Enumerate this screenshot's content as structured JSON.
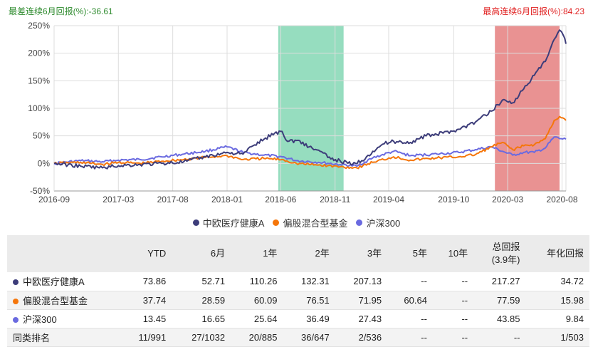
{
  "header": {
    "worst_label": "最差连续6月回报(%):-36.61",
    "best_label": "最高连续6月回报(%):84.23"
  },
  "chart_data": {
    "type": "line",
    "ylabel_ticks": [
      "-50%",
      "0%",
      "50%",
      "100%",
      "150%",
      "200%",
      "250%"
    ],
    "y_ticks": [
      -50,
      0,
      50,
      100,
      150,
      200,
      250
    ],
    "ylim": [
      -50,
      250
    ],
    "x_ticks": [
      "2016-09",
      "2017-03",
      "2017-08",
      "2018-01",
      "2018-06",
      "2018-11",
      "2019-04",
      "2019-10",
      "2020-03",
      "2020-08"
    ],
    "x_tick_dates": [
      "2016-09-01",
      "2017-03-01",
      "2017-08-01",
      "2018-01-01",
      "2018-06-01",
      "2018-11-01",
      "2019-04-01",
      "2019-10-01",
      "2020-03-01",
      "2020-08-01"
    ],
    "xlim": [
      "2016-09-01",
      "2020-08-12"
    ],
    "grid": true,
    "legend_position": "bottom",
    "highlights": [
      {
        "start": "2018-05-25",
        "end": "2018-11-25",
        "color": "#5ecb9c"
      },
      {
        "start": "2020-01-25",
        "end": "2020-07-25",
        "color": "#dd5757"
      }
    ],
    "series": [
      {
        "name": "中欧医疗健康A",
        "color": "#3d3d7a",
        "points": [
          [
            "2016-09-01",
            0
          ],
          [
            "2016-11-15",
            -5
          ],
          [
            "2017-01-15",
            -8
          ],
          [
            "2017-03-01",
            -4
          ],
          [
            "2017-05-01",
            -2
          ],
          [
            "2017-07-01",
            0
          ],
          [
            "2017-09-01",
            3
          ],
          [
            "2017-11-01",
            12
          ],
          [
            "2018-01-01",
            20
          ],
          [
            "2018-02-15",
            17
          ],
          [
            "2018-03-15",
            32
          ],
          [
            "2018-04-15",
            44
          ],
          [
            "2018-05-15",
            55
          ],
          [
            "2018-06-05",
            58
          ],
          [
            "2018-06-20",
            40
          ],
          [
            "2018-07-20",
            42
          ],
          [
            "2018-08-20",
            30
          ],
          [
            "2018-09-20",
            22
          ],
          [
            "2018-10-20",
            8
          ],
          [
            "2018-11-15",
            5
          ],
          [
            "2018-12-20",
            -2
          ],
          [
            "2019-01-15",
            5
          ],
          [
            "2019-02-15",
            22
          ],
          [
            "2019-03-15",
            35
          ],
          [
            "2019-04-15",
            40
          ],
          [
            "2019-06-01",
            38
          ],
          [
            "2019-07-15",
            50
          ],
          [
            "2019-09-01",
            55
          ],
          [
            "2019-10-15",
            62
          ],
          [
            "2019-12-01",
            75
          ],
          [
            "2020-01-15",
            95
          ],
          [
            "2020-02-15",
            115
          ],
          [
            "2020-03-15",
            110
          ],
          [
            "2020-04-15",
            135
          ],
          [
            "2020-05-15",
            160
          ],
          [
            "2020-06-15",
            185
          ],
          [
            "2020-07-10",
            225
          ],
          [
            "2020-07-25",
            242
          ],
          [
            "2020-08-05",
            232
          ],
          [
            "2020-08-12",
            217
          ]
        ]
      },
      {
        "name": "偏股混合型基金",
        "color": "#f5760b",
        "points": [
          [
            "2016-09-01",
            0
          ],
          [
            "2016-11-15",
            2
          ],
          [
            "2017-01-15",
            -2
          ],
          [
            "2017-03-01",
            2
          ],
          [
            "2017-05-01",
            0
          ],
          [
            "2017-07-01",
            4
          ],
          [
            "2017-09-01",
            7
          ],
          [
            "2017-11-01",
            11
          ],
          [
            "2018-01-01",
            14
          ],
          [
            "2018-02-15",
            7
          ],
          [
            "2018-04-15",
            9
          ],
          [
            "2018-06-05",
            7
          ],
          [
            "2018-07-15",
            0
          ],
          [
            "2018-09-15",
            -3
          ],
          [
            "2018-11-15",
            -6
          ],
          [
            "2019-01-01",
            -8
          ],
          [
            "2019-02-15",
            2
          ],
          [
            "2019-04-15",
            12
          ],
          [
            "2019-06-01",
            6
          ],
          [
            "2019-08-15",
            10
          ],
          [
            "2019-10-15",
            12
          ],
          [
            "2019-12-01",
            16
          ],
          [
            "2020-01-15",
            30
          ],
          [
            "2020-02-15",
            38
          ],
          [
            "2020-03-15",
            25
          ],
          [
            "2020-04-15",
            32
          ],
          [
            "2020-05-15",
            34
          ],
          [
            "2020-06-15",
            45
          ],
          [
            "2020-07-10",
            78
          ],
          [
            "2020-07-25",
            85
          ],
          [
            "2020-08-12",
            78
          ]
        ]
      },
      {
        "name": "沪深300",
        "color": "#6a6ae0",
        "points": [
          [
            "2016-09-01",
            0
          ],
          [
            "2016-11-15",
            5
          ],
          [
            "2017-01-15",
            3
          ],
          [
            "2017-03-01",
            6
          ],
          [
            "2017-05-01",
            7
          ],
          [
            "2017-07-01",
            12
          ],
          [
            "2017-09-01",
            17
          ],
          [
            "2017-11-01",
            22
          ],
          [
            "2018-01-01",
            30
          ],
          [
            "2018-02-15",
            20
          ],
          [
            "2018-04-15",
            15
          ],
          [
            "2018-06-05",
            12
          ],
          [
            "2018-07-15",
            5
          ],
          [
            "2018-09-15",
            2
          ],
          [
            "2018-11-15",
            -2
          ],
          [
            "2019-01-01",
            -5
          ],
          [
            "2019-02-15",
            10
          ],
          [
            "2019-04-15",
            22
          ],
          [
            "2019-06-01",
            14
          ],
          [
            "2019-08-15",
            17
          ],
          [
            "2019-10-15",
            20
          ],
          [
            "2019-12-01",
            25
          ],
          [
            "2020-01-15",
            30
          ],
          [
            "2020-02-15",
            22
          ],
          [
            "2020-03-15",
            15
          ],
          [
            "2020-04-15",
            20
          ],
          [
            "2020-05-15",
            20
          ],
          [
            "2020-06-15",
            28
          ],
          [
            "2020-07-10",
            48
          ],
          [
            "2020-07-25",
            45
          ],
          [
            "2020-08-12",
            44
          ]
        ]
      }
    ]
  },
  "legend": [
    "中欧医疗健康A",
    "偏股混合型基金",
    "沪深300"
  ],
  "table": {
    "headers": [
      "",
      "YTD",
      "6月",
      "1年",
      "2年",
      "3年",
      "5年",
      "10年",
      "总回报",
      "(3.9年)",
      "年化回报"
    ],
    "rows": [
      {
        "name": "中欧医疗健康A",
        "color": "#3d3d7a",
        "cells": [
          "73.86",
          "52.71",
          "110.26",
          "132.31",
          "207.13",
          "--",
          "--",
          "217.27",
          "34.72"
        ]
      },
      {
        "name": "偏股混合型基金",
        "color": "#f5760b",
        "cells": [
          "37.74",
          "28.59",
          "60.09",
          "76.51",
          "71.95",
          "60.64",
          "--",
          "77.59",
          "15.98"
        ]
      },
      {
        "name": "沪深300",
        "color": "#6a6ae0",
        "cells": [
          "13.45",
          "16.65",
          "25.64",
          "36.49",
          "27.43",
          "--",
          "--",
          "43.85",
          "9.84"
        ]
      },
      {
        "name": "同类排名",
        "color": "",
        "cells": [
          "11/991",
          "27/1032",
          "20/885",
          "36/647",
          "2/536",
          "--",
          "--",
          "--",
          "1/503"
        ]
      }
    ]
  }
}
